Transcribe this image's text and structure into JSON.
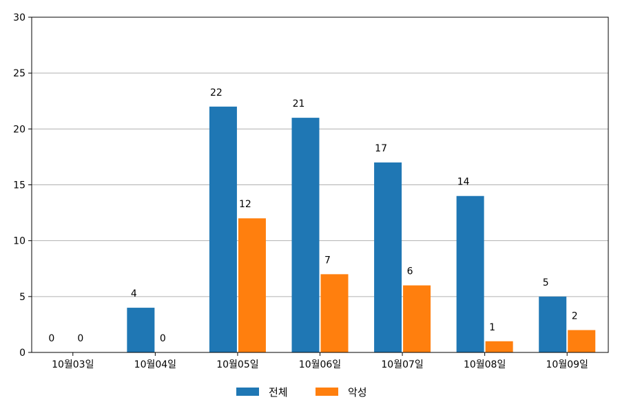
{
  "chart_data": {
    "type": "bar",
    "categories": [
      "10월03일",
      "10월04일",
      "10월05일",
      "10월06일",
      "10월07일",
      "10월08일",
      "10월09일"
    ],
    "series": [
      {
        "name": "전체",
        "values": [
          0,
          4,
          22,
          21,
          17,
          14,
          5
        ],
        "color": "#1f77b4"
      },
      {
        "name": "악성",
        "values": [
          0,
          0,
          12,
          7,
          6,
          1,
          2
        ],
        "color": "#ff7f0e"
      }
    ],
    "ylim": [
      0,
      30
    ],
    "yticks": [
      0,
      5,
      10,
      15,
      20,
      25,
      30
    ],
    "grid": "horizontal",
    "legend_position": "bottom-center",
    "data_labels": true
  }
}
